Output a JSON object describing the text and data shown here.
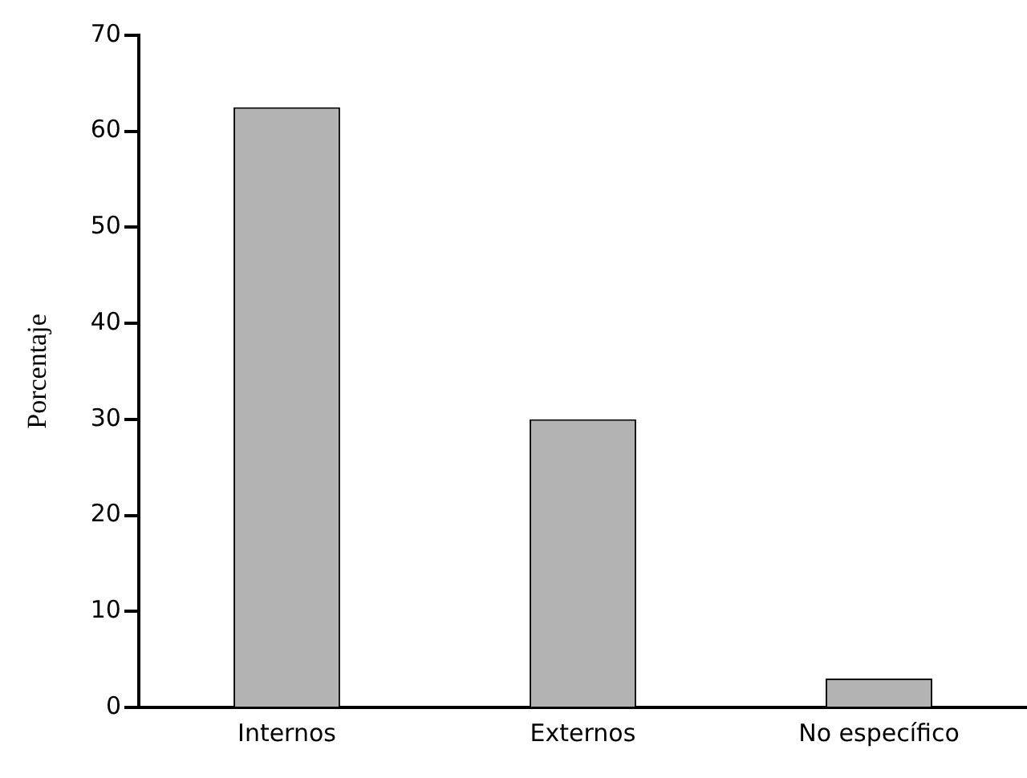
{
  "chart_data": {
    "type": "bar",
    "ylabel": "Porcentaje",
    "categories": [
      "Internos",
      "Externos",
      "No específico"
    ],
    "values": [
      62.5,
      30,
      3
    ],
    "color": "#b3b3b3",
    "ylim": [
      0,
      70
    ],
    "yticks": [
      0,
      10,
      20,
      30,
      40,
      50,
      60,
      70
    ],
    "grid": false,
    "legend": false
  }
}
